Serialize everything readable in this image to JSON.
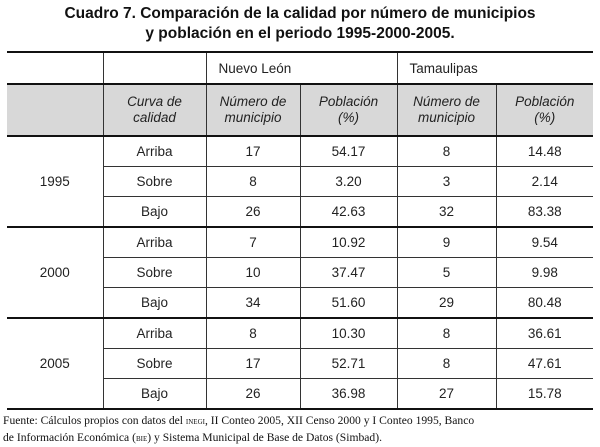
{
  "title": {
    "line1": "Cuadro 7. Comparación de la calidad por número de municipios",
    "line2": "y población en el periodo 1995-2000-2005."
  },
  "header": {
    "group1": "Nuevo León",
    "group2": "Tamaulipas",
    "col_curva_1": "Curva de",
    "col_curva_2": "calidad",
    "col_num_1": "Número de",
    "col_num_2": "municipio",
    "col_pob_1": "Población",
    "col_pob_2": "(%)"
  },
  "years": [
    {
      "year": "1995",
      "rows": [
        {
          "curva": "Arriba",
          "nl_num": "17",
          "nl_pob": "54.17",
          "ta_num": "8",
          "ta_pob": "14.48"
        },
        {
          "curva": "Sobre",
          "nl_num": "8",
          "nl_pob": "3.20",
          "ta_num": "3",
          "ta_pob": "2.14"
        },
        {
          "curva": "Bajo",
          "nl_num": "26",
          "nl_pob": "42.63",
          "ta_num": "32",
          "ta_pob": "83.38"
        }
      ]
    },
    {
      "year": "2000",
      "rows": [
        {
          "curva": "Arriba",
          "nl_num": "7",
          "nl_pob": "10.92",
          "ta_num": "9",
          "ta_pob": "9.54"
        },
        {
          "curva": "Sobre",
          "nl_num": "10",
          "nl_pob": "37.47",
          "ta_num": "5",
          "ta_pob": "9.98"
        },
        {
          "curva": "Bajo",
          "nl_num": "34",
          "nl_pob": "51.60",
          "ta_num": "29",
          "ta_pob": "80.48"
        }
      ]
    },
    {
      "year": "2005",
      "rows": [
        {
          "curva": "Arriba",
          "nl_num": "8",
          "nl_pob": "10.30",
          "ta_num": "8",
          "ta_pob": "36.61"
        },
        {
          "curva": "Sobre",
          "nl_num": "17",
          "nl_pob": "52.71",
          "ta_num": "8",
          "ta_pob": "47.61"
        },
        {
          "curva": "Bajo",
          "nl_num": "26",
          "nl_pob": "36.98",
          "ta_num": "27",
          "ta_pob": "15.78"
        }
      ]
    }
  ],
  "footer": {
    "part1": "Fuente: Cálculos propios con datos del ",
    "inegi": "inegi",
    "part2": ", II Conteo 2005, XII Censo 2000 y I Conteo 1995, Banco",
    "part3": "de Información Económica (",
    "bie": "bie",
    "part4": ") y Sistema Municipal de Base de Datos (Simbad)."
  }
}
